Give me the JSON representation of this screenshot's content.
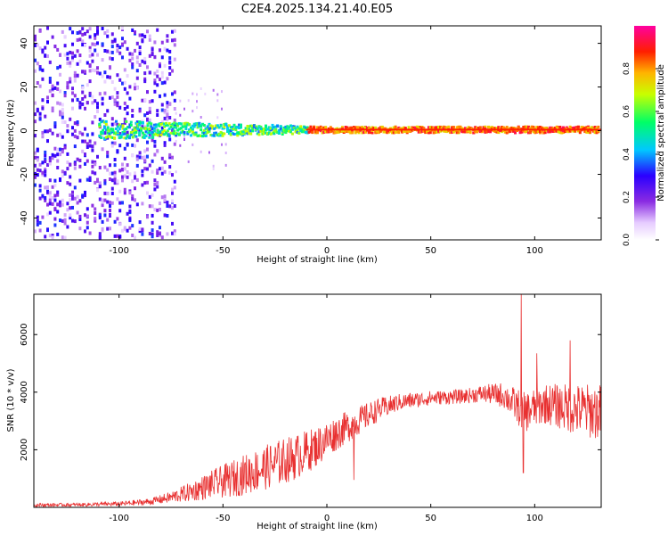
{
  "figure_title": "C2E4.2025.134.21.40.E05",
  "chart_data": [
    {
      "type": "heatmap",
      "title": "",
      "xlabel": "Height of straight line (km)",
      "ylabel": "Frequency (Hz)",
      "xlim": [
        -141,
        132
      ],
      "ylim": [
        -50,
        48
      ],
      "xticks": [
        -100,
        -50,
        0,
        50,
        100
      ],
      "yticks": [
        -40,
        -20,
        0,
        20,
        40
      ],
      "grid": false,
      "colorbar": {
        "label": "Normalized spectral amplitude",
        "range": [
          0,
          1
        ],
        "ticks": [
          0.0,
          0.2,
          0.4,
          0.6,
          0.8
        ],
        "tick_labels": [
          "0.0",
          "0.2",
          "0.4",
          "0.6",
          "0.8"
        ],
        "colormap_stops": [
          {
            "v": 0.0,
            "color": "#ffffff"
          },
          {
            "v": 0.08,
            "color": "#e6ccff"
          },
          {
            "v": 0.18,
            "color": "#8a2be2"
          },
          {
            "v": 0.3,
            "color": "#2a00ff"
          },
          {
            "v": 0.42,
            "color": "#00c8ff"
          },
          {
            "v": 0.55,
            "color": "#00ff66"
          },
          {
            "v": 0.68,
            "color": "#c8ff00"
          },
          {
            "v": 0.78,
            "color": "#ffb400"
          },
          {
            "v": 0.88,
            "color": "#ff1e00"
          },
          {
            "v": 1.0,
            "color": "#ff00a0"
          }
        ]
      },
      "description_bands": [
        {
          "x_range": [
            -141,
            -75
          ],
          "freq_spread": 48,
          "level": 0.25,
          "note": "broadband scattered noise"
        },
        {
          "x_range": [
            -75,
            -50
          ],
          "freq_spread": 20,
          "level": 0.15,
          "note": "sparse noise"
        },
        {
          "x_range": [
            -110,
            -10
          ],
          "freq_spread": 6,
          "level": 0.45,
          "note": "narrowing tone"
        },
        {
          "x_range": [
            -10,
            132
          ],
          "freq_spread": 2,
          "level": 0.9,
          "note": "strong carrier near 0 Hz"
        }
      ]
    },
    {
      "type": "line",
      "title": "",
      "xlabel": "Height of straight line (km)",
      "ylabel": "SNR (10 * v/v)",
      "xlim": [
        -141,
        132
      ],
      "ylim": [
        0,
        7400
      ],
      "xticks": [
        -100,
        -50,
        0,
        50,
        100
      ],
      "yticks": [
        2000,
        4000,
        6000
      ],
      "grid": false,
      "series": [
        {
          "color": "#e83030",
          "envelope": [
            {
              "x": -141,
              "mean": 80,
              "spread": 60
            },
            {
              "x": -120,
              "mean": 90,
              "spread": 60
            },
            {
              "x": -100,
              "mean": 120,
              "spread": 80
            },
            {
              "x": -85,
              "mean": 200,
              "spread": 120
            },
            {
              "x": -75,
              "mean": 350,
              "spread": 200
            },
            {
              "x": -65,
              "mean": 550,
              "spread": 350
            },
            {
              "x": -55,
              "mean": 800,
              "spread": 500
            },
            {
              "x": -45,
              "mean": 1000,
              "spread": 650
            },
            {
              "x": -35,
              "mean": 1250,
              "spread": 750
            },
            {
              "x": -25,
              "mean": 1500,
              "spread": 800
            },
            {
              "x": -15,
              "mean": 1750,
              "spread": 800
            },
            {
              "x": -5,
              "mean": 2100,
              "spread": 700
            },
            {
              "x": 5,
              "mean": 2600,
              "spread": 600
            },
            {
              "x": 15,
              "mean": 3000,
              "spread": 500
            },
            {
              "x": 25,
              "mean": 3400,
              "spread": 400
            },
            {
              "x": 35,
              "mean": 3650,
              "spread": 300
            },
            {
              "x": 50,
              "mean": 3800,
              "spread": 250
            },
            {
              "x": 65,
              "mean": 3850,
              "spread": 250
            },
            {
              "x": 75,
              "mean": 3950,
              "spread": 300
            },
            {
              "x": 85,
              "mean": 3900,
              "spread": 450
            },
            {
              "x": 95,
              "mean": 3300,
              "spread": 700
            },
            {
              "x": 105,
              "mean": 3600,
              "spread": 700
            },
            {
              "x": 120,
              "mean": 3400,
              "spread": 900
            },
            {
              "x": 132,
              "mean": 3300,
              "spread": 1000
            }
          ],
          "spikes": [
            {
              "x": 93.5,
              "y": 7400
            },
            {
              "x": 94.5,
              "y": 1200
            },
            {
              "x": 13,
              "y": 950
            },
            {
              "x": 117,
              "y": 5800
            },
            {
              "x": 101,
              "y": 5350
            }
          ]
        }
      ]
    }
  ]
}
